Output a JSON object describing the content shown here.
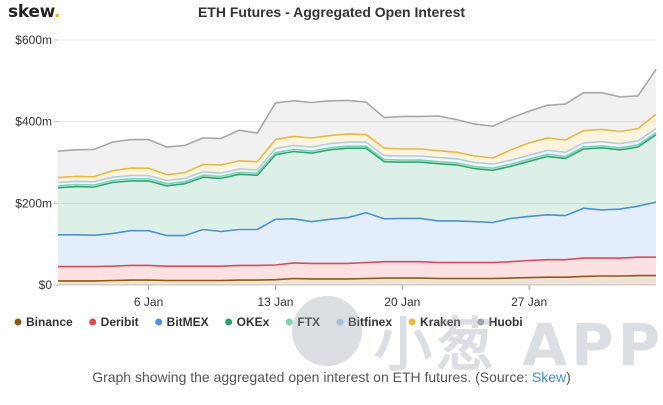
{
  "brand": {
    "name": "skew",
    "dot": "."
  },
  "caption": {
    "prefix": "Graph showing the aggregated open interest on ETH futures. (Source: ",
    "source": "Skew",
    "suffix": ")"
  },
  "watermark": {
    "text": "小葱 APP"
  },
  "chart_data": {
    "type": "area",
    "stacked": true,
    "title": "ETH Futures - Aggregated Open Interest",
    "xlabel": "",
    "ylabel": "",
    "x": [
      "2020-01-01",
      "2020-01-02",
      "2020-01-03",
      "2020-01-04",
      "2020-01-05",
      "2020-01-06",
      "2020-01-07",
      "2020-01-08",
      "2020-01-09",
      "2020-01-10",
      "2020-01-11",
      "2020-01-12",
      "2020-01-13",
      "2020-01-14",
      "2020-01-15",
      "2020-01-16",
      "2020-01-17",
      "2020-01-18",
      "2020-01-19",
      "2020-01-20",
      "2020-01-21",
      "2020-01-22",
      "2020-01-23",
      "2020-01-24",
      "2020-01-25",
      "2020-01-26",
      "2020-01-27",
      "2020-01-28",
      "2020-01-29",
      "2020-01-30",
      "2020-01-31",
      "2020-02-01",
      "2020-02-02",
      "2020-02-03"
    ],
    "x_ticks": [
      {
        "date": "2020-01-06",
        "label": "6 Jan"
      },
      {
        "date": "2020-01-13",
        "label": "13 Jan"
      },
      {
        "date": "2020-01-20",
        "label": "20 Jan"
      },
      {
        "date": "2020-01-27",
        "label": "27 Jan"
      }
    ],
    "ylim": [
      0,
      600
    ],
    "y_ticks": [
      {
        "value": 0,
        "label": "$0"
      },
      {
        "value": 200,
        "label": "$200m"
      },
      {
        "value": 400,
        "label": "$400m"
      },
      {
        "value": 600,
        "label": "$600m"
      }
    ],
    "grid": true,
    "legend_position": "bottom",
    "series": [
      {
        "name": "Binance",
        "color": "#8b5a10",
        "values": [
          10,
          10,
          10,
          11,
          12,
          12,
          11,
          11,
          11,
          11,
          12,
          12,
          13,
          16,
          15,
          15,
          15,
          16,
          17,
          17,
          17,
          16,
          16,
          16,
          16,
          17,
          18,
          19,
          19,
          21,
          22,
          22,
          23,
          23
        ]
      },
      {
        "name": "Deribit",
        "color": "#e8474a",
        "values": [
          35,
          35,
          35,
          35,
          36,
          36,
          35,
          35,
          35,
          35,
          36,
          36,
          36,
          38,
          38,
          38,
          38,
          39,
          40,
          40,
          40,
          39,
          39,
          39,
          39,
          40,
          42,
          43,
          43,
          45,
          44,
          44,
          45,
          45
        ]
      },
      {
        "name": "BitMEX",
        "color": "#4f8fe8",
        "values": [
          78,
          78,
          77,
          80,
          85,
          85,
          75,
          75,
          90,
          85,
          88,
          88,
          112,
          108,
          102,
          108,
          112,
          122,
          105,
          106,
          106,
          102,
          102,
          100,
          98,
          106,
          108,
          110,
          108,
          122,
          118,
          120,
          125,
          135
        ]
      },
      {
        "name": "OKEx",
        "color": "#2aa36b",
        "values": [
          115,
          118,
          118,
          125,
          122,
          122,
          122,
          127,
          128,
          130,
          135,
          133,
          158,
          165,
          168,
          170,
          170,
          158,
          140,
          138,
          138,
          140,
          137,
          130,
          128,
          128,
          135,
          143,
          140,
          145,
          152,
          145,
          145,
          165
        ]
      },
      {
        "name": "FTX",
        "color": "#7dd3b0",
        "values": [
          5,
          5,
          5,
          5,
          5,
          5,
          5,
          5,
          5,
          5,
          5,
          5,
          5,
          5,
          5,
          5,
          5,
          5,
          5,
          5,
          5,
          5,
          5,
          5,
          5,
          5,
          5,
          5,
          5,
          5,
          5,
          5,
          5,
          5
        ]
      },
      {
        "name": "Bitfinex",
        "color": "#a8d0f0",
        "values": [
          8,
          8,
          8,
          8,
          8,
          8,
          8,
          8,
          8,
          8,
          8,
          8,
          10,
          10,
          10,
          10,
          10,
          10,
          10,
          10,
          10,
          10,
          10,
          10,
          10,
          10,
          10,
          10,
          10,
          10,
          10,
          10,
          10,
          10
        ]
      },
      {
        "name": "Kraken",
        "color": "#f2b93b",
        "values": [
          12,
          12,
          12,
          16,
          18,
          18,
          14,
          14,
          18,
          20,
          20,
          20,
          22,
          22,
          22,
          20,
          20,
          18,
          18,
          17,
          17,
          17,
          16,
          16,
          15,
          25,
          30,
          30,
          30,
          30,
          30,
          30,
          30,
          35
        ]
      },
      {
        "name": "Huobi",
        "color": "#a8a8a8",
        "values": [
          65,
          65,
          67,
          70,
          70,
          70,
          68,
          67,
          65,
          65,
          75,
          70,
          90,
          87,
          87,
          85,
          82,
          80,
          75,
          80,
          80,
          85,
          80,
          78,
          78,
          78,
          78,
          80,
          88,
          93,
          90,
          85,
          80,
          110
        ]
      }
    ]
  }
}
